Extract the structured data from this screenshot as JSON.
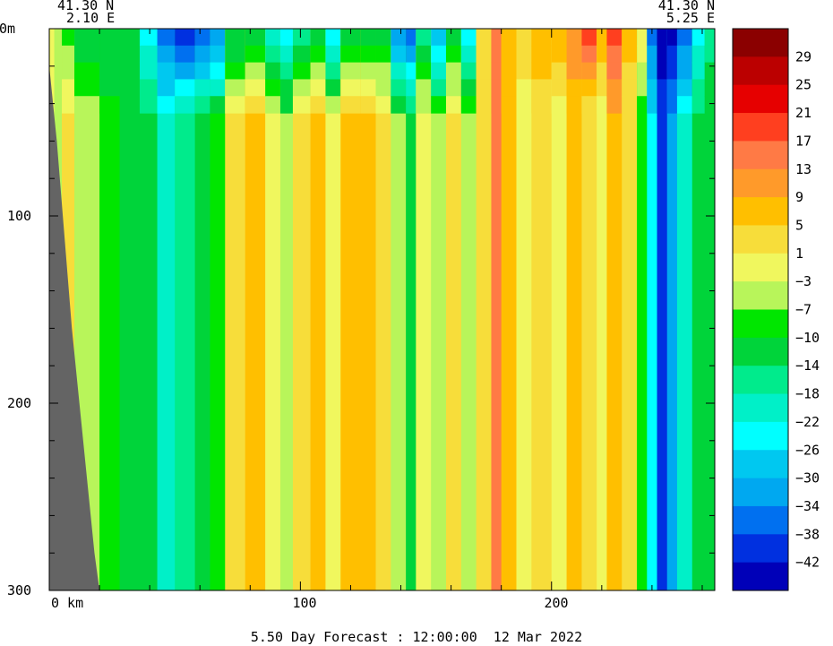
{
  "chart_data": {
    "type": "heatmap",
    "caption": "5.50 Day Forecast : 12:00:00  12 Mar 2022",
    "left_coord": {
      "lat": "41.30 N",
      "lon": "2.10 E"
    },
    "right_coord": {
      "lat": "41.30 N",
      "lon": "5.25 E"
    },
    "x_axis": {
      "tick_labels": [
        "0 km",
        "100",
        "200"
      ],
      "ticks": [
        0,
        100,
        200
      ],
      "xlim": [
        0,
        265
      ]
    },
    "y_axis": {
      "tick_labels": [
        "0m",
        "100",
        "200",
        "300"
      ],
      "ticks": [
        0,
        100,
        200,
        300
      ],
      "ylim": [
        0,
        300
      ],
      "inverted": true
    },
    "colorbar": {
      "labels": [
        "29",
        "25",
        "21",
        "17",
        "13",
        "9",
        "5",
        "1",
        "-3",
        "-7",
        "-10",
        "-14",
        "-18",
        "-22",
        "-26",
        "-30",
        "-34",
        "-38",
        "-42"
      ],
      "colors": [
        "#8b0000",
        "#bb0000",
        "#e60000",
        "#ff3f1f",
        "#ff7a45",
        "#ff9a2a",
        "#ffbf00",
        "#f7dd3a",
        "#f0f75e",
        "#b8f55a",
        "#00e600",
        "#00d43a",
        "#00eb8c",
        "#00f0c8",
        "#00ffff",
        "#00c8f0",
        "#00a8f0",
        "#0070f0",
        "#0030e0",
        "#0000b8"
      ]
    },
    "columns": [
      {
        "x": [
          0,
          2
        ],
        "v": 1,
        "surf": 1
      },
      {
        "x": [
          2,
          5
        ],
        "v": -3,
        "surf": -3
      },
      {
        "x": [
          5,
          10
        ],
        "v": 3,
        "surf": -7
      },
      {
        "x": [
          10,
          20
        ],
        "v": -3,
        "surf": -10
      },
      {
        "x": [
          20,
          28
        ],
        "v": -7,
        "surf": -12
      },
      {
        "x": [
          28,
          36
        ],
        "v": -9,
        "surf": -12
      },
      {
        "x": [
          36,
          43
        ],
        "v": -12,
        "surf": -22
      },
      {
        "x": [
          43,
          50
        ],
        "v": -18,
        "surf": -34
      },
      {
        "x": [
          50,
          58
        ],
        "v": -14,
        "surf": -38
      },
      {
        "x": [
          58,
          64
        ],
        "v": -10,
        "surf": -34
      },
      {
        "x": [
          64,
          70
        ],
        "v": -7,
        "surf": -30
      },
      {
        "x": [
          70,
          78
        ],
        "v": 3,
        "surf": -12
      },
      {
        "x": [
          78,
          86
        ],
        "v": 7,
        "surf": -10
      },
      {
        "x": [
          86,
          92
        ],
        "v": 1,
        "surf": -18
      },
      {
        "x": [
          92,
          97
        ],
        "v": -5,
        "surf": -22
      },
      {
        "x": [
          97,
          104
        ],
        "v": 3,
        "surf": -14
      },
      {
        "x": [
          104,
          110
        ],
        "v": 7,
        "surf": -10
      },
      {
        "x": [
          110,
          116
        ],
        "v": 1,
        "surf": -22
      },
      {
        "x": [
          116,
          124
        ],
        "v": 9,
        "surf": -10
      },
      {
        "x": [
          124,
          130
        ],
        "v": 9,
        "surf": -10
      },
      {
        "x": [
          130,
          136
        ],
        "v": 3,
        "surf": -10
      },
      {
        "x": [
          136,
          142
        ],
        "v": -5,
        "surf": -30
      },
      {
        "x": [
          142,
          146
        ],
        "v": -9,
        "surf": -34
      },
      {
        "x": [
          146,
          152
        ],
        "v": 1,
        "surf": -14
      },
      {
        "x": [
          152,
          158
        ],
        "v": -3,
        "surf": -26
      },
      {
        "x": [
          158,
          164
        ],
        "v": 3,
        "surf": -10
      },
      {
        "x": [
          164,
          170
        ],
        "v": -3,
        "surf": -22
      },
      {
        "x": [
          170,
          176
        ],
        "v": 5,
        "surf": 5
      },
      {
        "x": [
          176,
          180
        ],
        "v": 15,
        "surf": 17
      },
      {
        "x": [
          180,
          186
        ],
        "v": 9,
        "surf": 9
      },
      {
        "x": [
          186,
          192
        ],
        "v": 1,
        "surf": 5
      },
      {
        "x": [
          192,
          200
        ],
        "v": 5,
        "surf": 9
      },
      {
        "x": [
          200,
          206
        ],
        "v": 1,
        "surf": 9
      },
      {
        "x": [
          206,
          212
        ],
        "v": 9,
        "surf": 13
      },
      {
        "x": [
          212,
          218
        ],
        "v": 3,
        "surf": 21
      },
      {
        "x": [
          218,
          222
        ],
        "v": 1,
        "surf": 9
      },
      {
        "x": [
          222,
          228
        ],
        "v": 9,
        "surf": 21
      },
      {
        "x": [
          228,
          234
        ],
        "v": 3,
        "surf": 9
      },
      {
        "x": [
          234,
          238
        ],
        "v": -8,
        "surf": 1
      },
      {
        "x": [
          238,
          242
        ],
        "v": -22,
        "surf": -34
      },
      {
        "x": [
          242,
          246
        ],
        "v": -38,
        "surf": -42
      },
      {
        "x": [
          246,
          250
        ],
        "v": -30,
        "surf": -42
      },
      {
        "x": [
          250,
          256
        ],
        "v": -20,
        "surf": -34
      },
      {
        "x": [
          256,
          261
        ],
        "v": -12,
        "surf": -22
      },
      {
        "x": [
          261,
          265
        ],
        "v": -9,
        "surf": -14
      }
    ],
    "land_color": "#646464"
  }
}
